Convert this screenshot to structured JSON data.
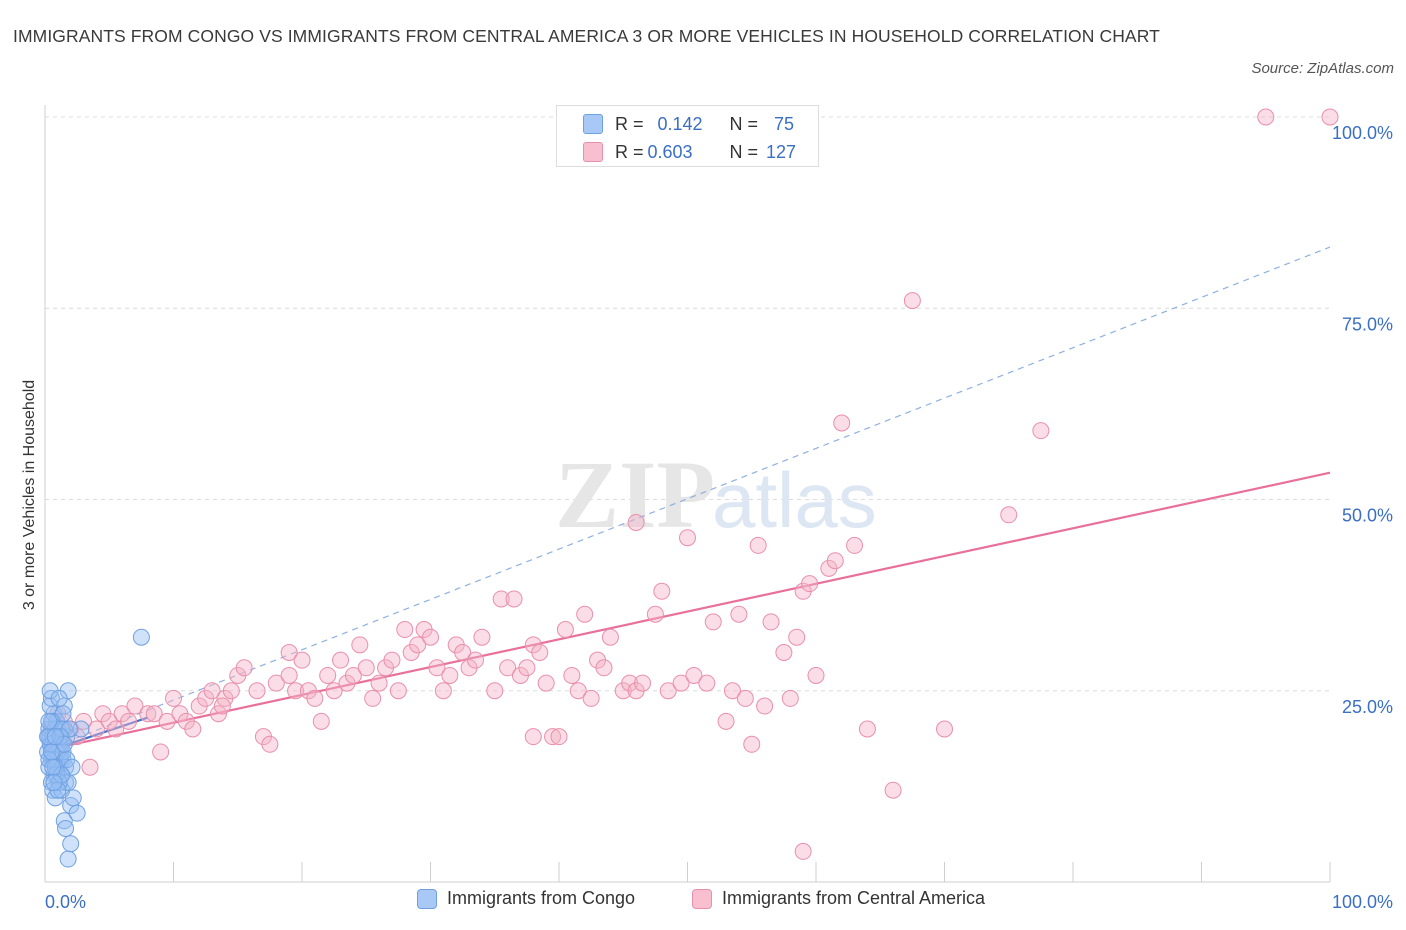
{
  "title": "IMMIGRANTS FROM CONGO VS IMMIGRANTS FROM CENTRAL AMERICA 3 OR MORE VEHICLES IN HOUSEHOLD CORRELATION CHART",
  "source": "Source: ZipAtlas.com",
  "watermark": {
    "zip": "ZIP",
    "atlas": "atlas"
  },
  "stats": [
    {
      "r_label": "R =",
      "r_value": "0.142",
      "n_label": "N =",
      "n_value": "75",
      "color": "#a8c8f5",
      "border": "#6fa0e0"
    },
    {
      "r_label": "R =",
      "r_value": "0.603",
      "n_label": "N =",
      "n_value": "127",
      "color": "#f7bfd0",
      "border": "#ea8fab"
    }
  ],
  "legend": [
    {
      "label": "Immigrants from Congo",
      "color": "#a8c8f5",
      "border": "#6fa0e0"
    },
    {
      "label": "Immigrants from Central America",
      "color": "#f7bfd0",
      "border": "#ea8fab"
    }
  ],
  "chart_data": {
    "type": "scatter",
    "title": "IMMIGRANTS FROM CONGO VS IMMIGRANTS FROM CENTRAL AMERICA 3 OR MORE VEHICLES IN HOUSEHOLD CORRELATION CHART",
    "xlabel": "",
    "ylabel": "3 or more Vehicles in Household",
    "xlim": [
      0,
      100
    ],
    "ylim": [
      0,
      100
    ],
    "x_tick_labels": [
      "0.0%",
      "100.0%"
    ],
    "y_tick_labels": [
      "25.0%",
      "50.0%",
      "75.0%",
      "100.0%"
    ],
    "y_ticks": [
      25,
      50,
      75,
      100
    ],
    "x_minor_ticks": [
      10,
      20,
      30,
      40,
      50,
      60,
      70,
      80,
      90,
      100
    ],
    "grid": true,
    "colors": {
      "congo": "#6fa0e0",
      "congo_fill": "rgba(150,190,245,0.45)",
      "central": "#ea8fab",
      "central_fill": "rgba(245,180,200,0.45)",
      "axis_text": "#3a6fc4"
    },
    "series": [
      {
        "name": "Immigrants from Congo",
        "points": [
          [
            0.3,
            20
          ],
          [
            0.4,
            19
          ],
          [
            0.5,
            18
          ],
          [
            0.2,
            17
          ],
          [
            0.6,
            21
          ],
          [
            0.5,
            16
          ],
          [
            0.3,
            15
          ],
          [
            0.7,
            22
          ],
          [
            0.4,
            23
          ],
          [
            0.5,
            24
          ],
          [
            0.8,
            18
          ],
          [
            0.6,
            17
          ],
          [
            0.9,
            16
          ],
          [
            1.0,
            20
          ],
          [
            0.7,
            14
          ],
          [
            0.5,
            13
          ],
          [
            0.6,
            12
          ],
          [
            0.8,
            11
          ],
          [
            1.1,
            19
          ],
          [
            1.2,
            17
          ],
          [
            1.0,
            15
          ],
          [
            0.9,
            21
          ],
          [
            1.3,
            18
          ],
          [
            1.4,
            16
          ],
          [
            1.2,
            14
          ],
          [
            1.5,
            20
          ],
          [
            1.6,
            13
          ],
          [
            1.3,
            12
          ],
          [
            1.7,
            19
          ],
          [
            1.8,
            25
          ],
          [
            1.5,
            23
          ],
          [
            1.4,
            22
          ],
          [
            0.4,
            25
          ],
          [
            0.3,
            19
          ],
          [
            0.6,
            18
          ],
          [
            0.8,
            20
          ],
          [
            1.0,
            17
          ],
          [
            1.2,
            16
          ],
          [
            1.6,
            15
          ],
          [
            1.8,
            13
          ],
          [
            2.0,
            10
          ],
          [
            2.2,
            11
          ],
          [
            1.5,
            8
          ],
          [
            1.6,
            7
          ],
          [
            1.8,
            3
          ],
          [
            2.0,
            5
          ],
          [
            2.5,
            9
          ],
          [
            2.8,
            20
          ],
          [
            1.1,
            18
          ],
          [
            0.9,
            17
          ],
          [
            0.7,
            16
          ],
          [
            0.5,
            21
          ],
          [
            0.4,
            18
          ],
          [
            0.3,
            16
          ],
          [
            0.6,
            19
          ],
          [
            0.9,
            14
          ],
          [
            1.1,
            13
          ],
          [
            1.3,
            20
          ],
          [
            1.4,
            17
          ],
          [
            1.7,
            16
          ],
          [
            1.9,
            20
          ],
          [
            2.1,
            15
          ],
          [
            0.2,
            19
          ],
          [
            0.3,
            21
          ],
          [
            0.5,
            17
          ],
          [
            0.8,
            15
          ],
          [
            1.0,
            12
          ],
          [
            1.2,
            19
          ],
          [
            1.5,
            18
          ],
          [
            1.1,
            24
          ],
          [
            1.3,
            14
          ],
          [
            0.6,
            15
          ],
          [
            0.7,
            13
          ],
          [
            7.5,
            32
          ],
          [
            0.8,
            19
          ]
        ],
        "trend": {
          "from": [
            0,
            17
          ],
          "to": [
            8,
            21.5
          ]
        }
      },
      {
        "name": "Immigrants from Central America",
        "points": [
          [
            0.5,
            20
          ],
          [
            1.0,
            22
          ],
          [
            1.5,
            21
          ],
          [
            2.0,
            20
          ],
          [
            2.5,
            19
          ],
          [
            3.0,
            21
          ],
          [
            3.5,
            15
          ],
          [
            4.0,
            20
          ],
          [
            4.5,
            22
          ],
          [
            5.0,
            21
          ],
          [
            5.5,
            20
          ],
          [
            6.0,
            22
          ],
          [
            6.5,
            21
          ],
          [
            7.0,
            23
          ],
          [
            8.0,
            22
          ],
          [
            9.0,
            17
          ],
          [
            10.0,
            24
          ],
          [
            10.5,
            22
          ],
          [
            11.0,
            21
          ],
          [
            12.0,
            23
          ],
          [
            12.5,
            24
          ],
          [
            13.0,
            25
          ],
          [
            13.5,
            22
          ],
          [
            14.0,
            24
          ],
          [
            14.5,
            25
          ],
          [
            15.0,
            27
          ],
          [
            15.5,
            28
          ],
          [
            16.5,
            25
          ],
          [
            17.0,
            19
          ],
          [
            17.5,
            18
          ],
          [
            18.0,
            26
          ],
          [
            19.0,
            27
          ],
          [
            19.5,
            25
          ],
          [
            20.0,
            29
          ],
          [
            20.5,
            25
          ],
          [
            21.0,
            24
          ],
          [
            21.5,
            21
          ],
          [
            22.0,
            27
          ],
          [
            22.5,
            25
          ],
          [
            23.0,
            29
          ],
          [
            23.5,
            26
          ],
          [
            24.0,
            27
          ],
          [
            25.0,
            28
          ],
          [
            25.5,
            24
          ],
          [
            26.0,
            26
          ],
          [
            26.5,
            28
          ],
          [
            27.0,
            29
          ],
          [
            27.5,
            25
          ],
          [
            28.0,
            33
          ],
          [
            28.5,
            30
          ],
          [
            29.0,
            31
          ],
          [
            29.5,
            33
          ],
          [
            30.0,
            32
          ],
          [
            30.5,
            28
          ],
          [
            31.0,
            25
          ],
          [
            31.5,
            27
          ],
          [
            32.0,
            31
          ],
          [
            32.5,
            30
          ],
          [
            33.0,
            28
          ],
          [
            33.5,
            29
          ],
          [
            34.0,
            32
          ],
          [
            35.0,
            25
          ],
          [
            35.5,
            37
          ],
          [
            36.0,
            28
          ],
          [
            36.5,
            37
          ],
          [
            37.0,
            27
          ],
          [
            37.5,
            28
          ],
          [
            38.0,
            31
          ],
          [
            38.5,
            30
          ],
          [
            39.0,
            26
          ],
          [
            39.5,
            19
          ],
          [
            40.0,
            19
          ],
          [
            40.5,
            33
          ],
          [
            41.0,
            27
          ],
          [
            41.5,
            25
          ],
          [
            42.0,
            35
          ],
          [
            42.5,
            24
          ],
          [
            43.0,
            29
          ],
          [
            43.5,
            28
          ],
          [
            44.0,
            32
          ],
          [
            45.0,
            25
          ],
          [
            45.5,
            26
          ],
          [
            46.0,
            25
          ],
          [
            46.5,
            26
          ],
          [
            47.5,
            35
          ],
          [
            48.0,
            38
          ],
          [
            48.5,
            25
          ],
          [
            49.5,
            26
          ],
          [
            50.0,
            45
          ],
          [
            50.5,
            27
          ],
          [
            51.5,
            26
          ],
          [
            52.0,
            34
          ],
          [
            53.0,
            21
          ],
          [
            53.5,
            25
          ],
          [
            54.0,
            35
          ],
          [
            54.5,
            24
          ],
          [
            55.0,
            18
          ],
          [
            56.0,
            23
          ],
          [
            56.5,
            34
          ],
          [
            57.5,
            30
          ],
          [
            58.0,
            24
          ],
          [
            58.5,
            32
          ],
          [
            59.0,
            38
          ],
          [
            59.5,
            39
          ],
          [
            60.0,
            27
          ],
          [
            61.0,
            41
          ],
          [
            62.0,
            60
          ],
          [
            63.0,
            44
          ],
          [
            64.0,
            20
          ],
          [
            66.0,
            12
          ],
          [
            67.5,
            76
          ],
          [
            70.0,
            20
          ],
          [
            75.0,
            48
          ],
          [
            77.5,
            59
          ],
          [
            95.0,
            100
          ],
          [
            100.0,
            100
          ],
          [
            46.0,
            47
          ],
          [
            55.5,
            44
          ],
          [
            38.0,
            19
          ],
          [
            19.0,
            30
          ],
          [
            24.5,
            31
          ],
          [
            61.5,
            42
          ],
          [
            59.0,
            4
          ],
          [
            8.5,
            22
          ],
          [
            9.5,
            21
          ],
          [
            11.5,
            20
          ],
          [
            13.8,
            23
          ]
        ],
        "trend": {
          "from": [
            0,
            17.2
          ],
          "to": [
            100,
            53.5
          ]
        },
        "trend_dashed": {
          "from": [
            0,
            17.2
          ],
          "to": [
            100,
            83
          ]
        }
      }
    ]
  }
}
